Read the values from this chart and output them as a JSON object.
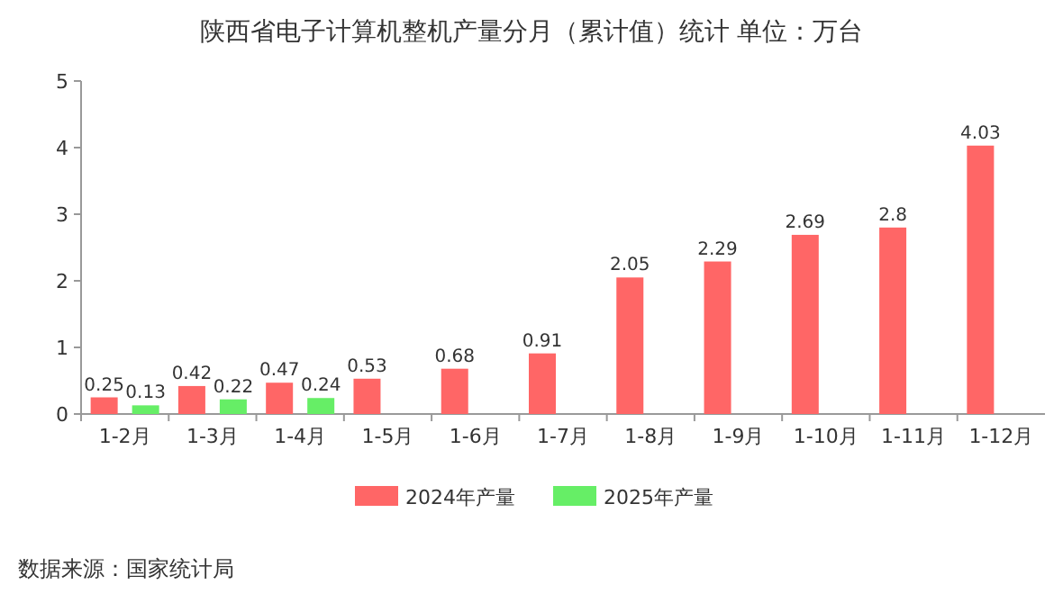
{
  "chart_data": {
    "type": "bar",
    "title": "陕西省电子计算机整机产量分月（累计值）统计  单位：万台",
    "categories": [
      "1-2月",
      "1-3月",
      "1-4月",
      "1-5月",
      "1-6月",
      "1-7月",
      "1-8月",
      "1-9月",
      "1-10月",
      "1-11月",
      "1-12月"
    ],
    "series": [
      {
        "name": "2024年产量",
        "color": "#ff6666",
        "values": [
          0.25,
          0.42,
          0.47,
          0.53,
          0.68,
          0.91,
          2.05,
          2.29,
          2.69,
          2.8,
          4.03
        ]
      },
      {
        "name": "2025年产量",
        "color": "#66ee66",
        "values": [
          0.13,
          0.22,
          0.24,
          null,
          null,
          null,
          null,
          null,
          null,
          null,
          null
        ]
      }
    ],
    "ylim": [
      0,
      5
    ],
    "yticks": [
      0,
      1,
      2,
      3,
      4,
      5
    ],
    "data_labels": true,
    "legend": "bottom",
    "grid": false,
    "annotations": [
      "数据来源：国家统计局"
    ]
  }
}
